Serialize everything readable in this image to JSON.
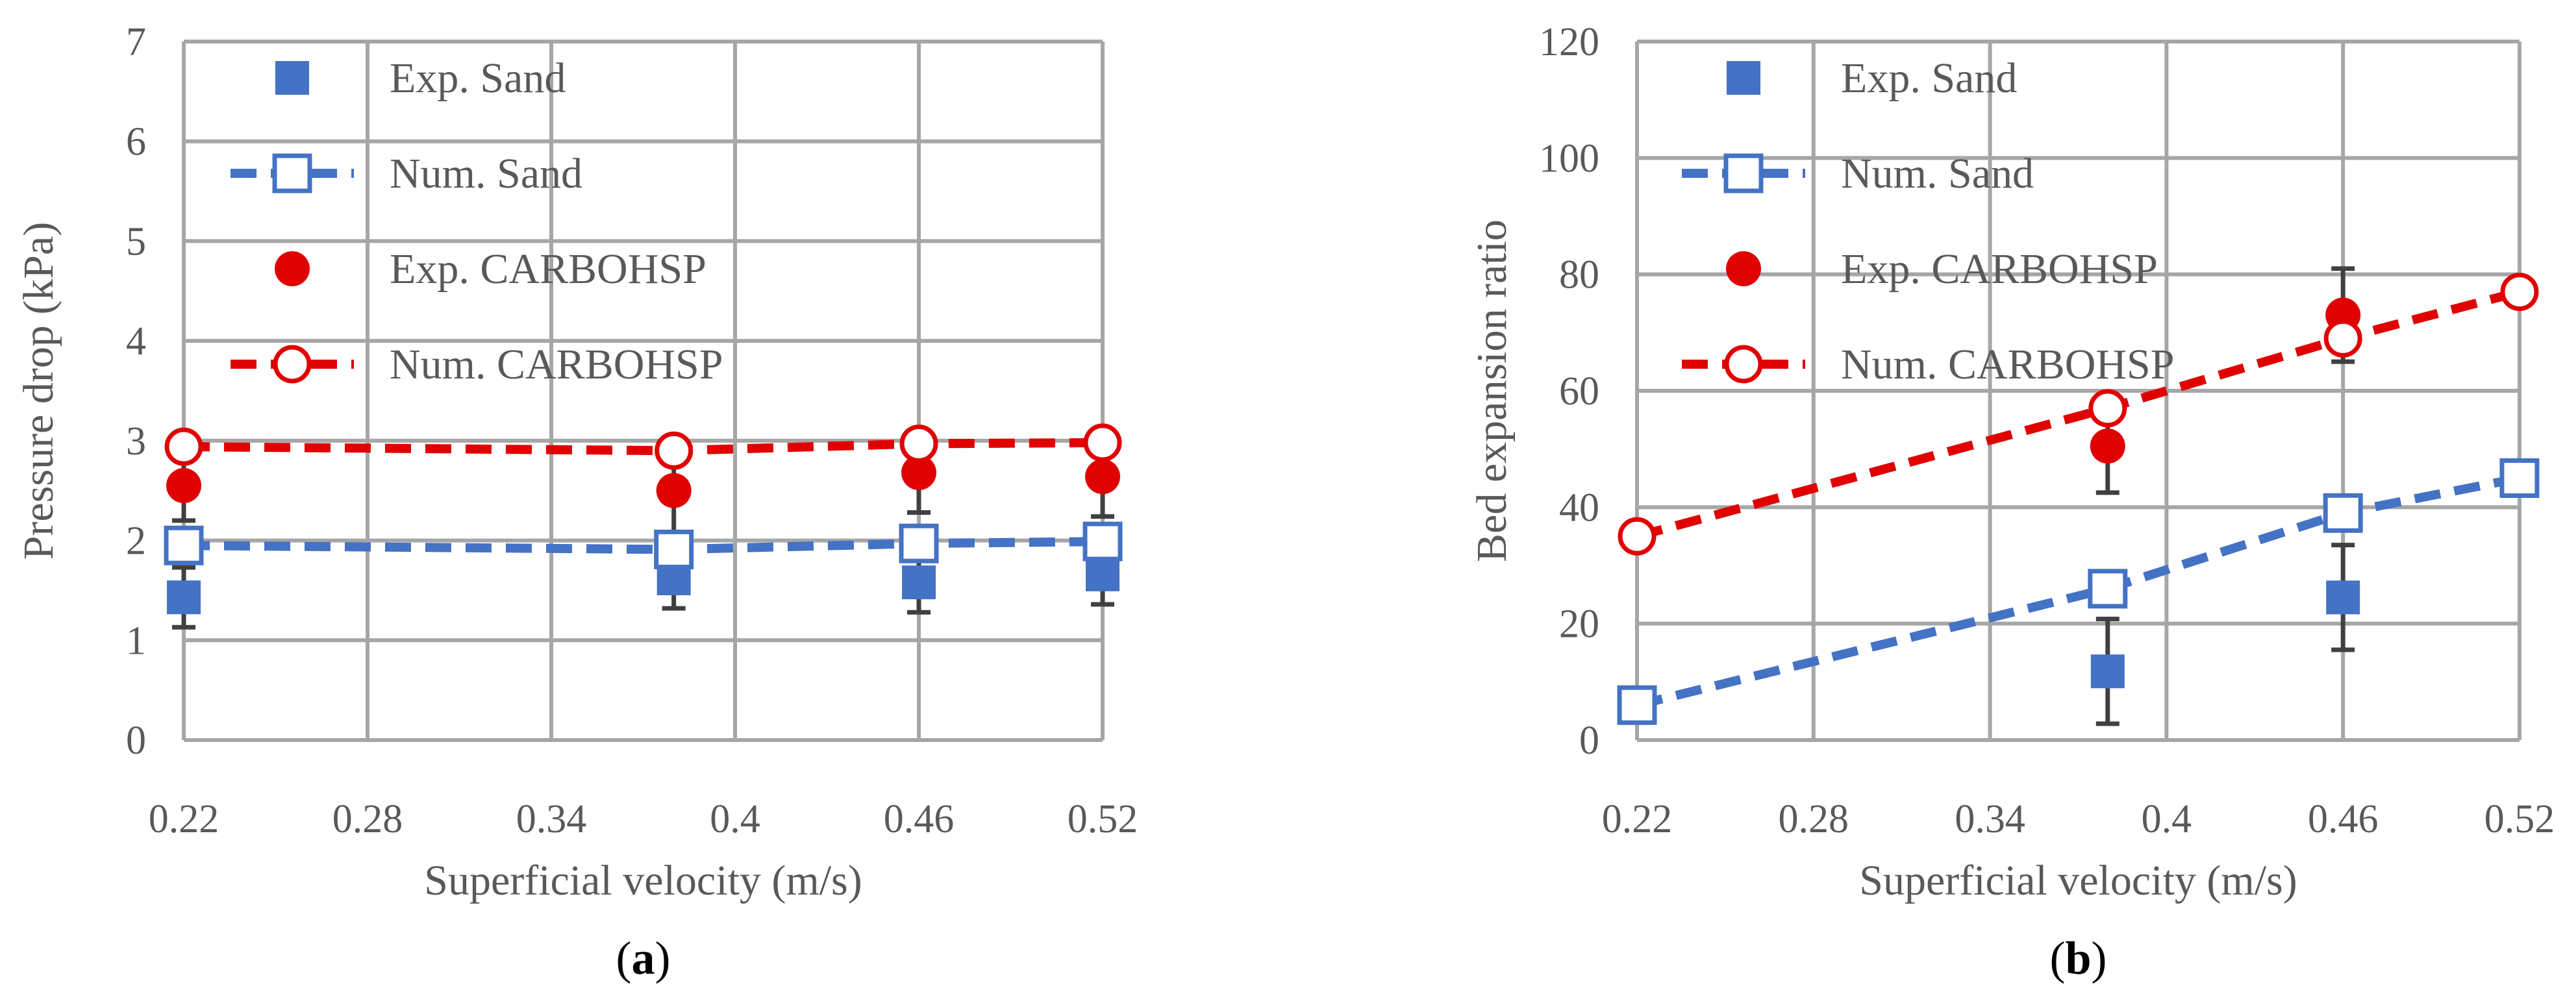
{
  "colors": {
    "sand": "#4472c4",
    "carbohsp": "#e00000",
    "grid": "#a6a6a6",
    "text": "#595959",
    "errbar": "#404040"
  },
  "chart_data": [
    {
      "type": "scatter",
      "panel_label_open": "(",
      "panel_label_letter": "a",
      "panel_label_close": ")",
      "xlabel": "Superficial velocity  (m/s)",
      "ylabel": "Pressure drop  (kPa)",
      "xlim": [
        0.22,
        0.52
      ],
      "ylim": [
        0,
        7
      ],
      "xticks": [
        0.22,
        0.28,
        0.34,
        0.4,
        0.46,
        0.52
      ],
      "xtick_labels": [
        "0.22",
        "0.28",
        "0.34",
        "0.4",
        "0.46",
        "0.52"
      ],
      "yticks": [
        0,
        1,
        2,
        3,
        4,
        5,
        6,
        7
      ],
      "ytick_labels": [
        "0",
        "1",
        "2",
        "3",
        "4",
        "5",
        "6",
        "7"
      ],
      "grid": true,
      "legend_position": "top-left",
      "series": [
        {
          "name": "Exp. Sand",
          "kind": "exp",
          "color": "sand",
          "marker": "filled-square",
          "x": [
            0.22,
            0.38,
            0.46,
            0.52
          ],
          "y": [
            1.43,
            1.62,
            1.58,
            1.66
          ],
          "err": [
            0.3,
            0.3,
            0.3,
            0.3
          ]
        },
        {
          "name": "Num. Sand",
          "kind": "num",
          "color": "sand",
          "marker": "open-square",
          "x": [
            0.22,
            0.38,
            0.46,
            0.52
          ],
          "y": [
            1.95,
            1.91,
            1.97,
            1.99
          ]
        },
        {
          "name": "Exp. CARBOHSP",
          "kind": "exp",
          "color": "carbohsp",
          "marker": "filled-circle",
          "x": [
            0.22,
            0.38,
            0.46,
            0.52
          ],
          "y": [
            2.55,
            2.5,
            2.68,
            2.64
          ],
          "err": [
            0.35,
            0.45,
            0.4,
            0.4
          ]
        },
        {
          "name": "Num. CARBOHSP",
          "kind": "num",
          "color": "carbohsp",
          "marker": "open-circle",
          "x": [
            0.22,
            0.38,
            0.46,
            0.52
          ],
          "y": [
            2.94,
            2.9,
            2.97,
            2.98
          ]
        }
      ]
    },
    {
      "type": "scatter",
      "panel_label_open": "(",
      "panel_label_letter": "b",
      "panel_label_close": ")",
      "xlabel": "Superficial velocity  (m/s)",
      "ylabel": "Bed expansion ratio",
      "xlim": [
        0.22,
        0.52
      ],
      "ylim": [
        0,
        120
      ],
      "xticks": [
        0.22,
        0.28,
        0.34,
        0.4,
        0.46,
        0.52
      ],
      "xtick_labels": [
        "0.22",
        "0.28",
        "0.34",
        "0.4",
        "0.46",
        "0.52"
      ],
      "yticks": [
        0,
        20,
        40,
        60,
        80,
        100,
        120
      ],
      "ytick_labels": [
        "0",
        "20",
        "40",
        "60",
        "80",
        "100",
        "120"
      ],
      "grid": true,
      "legend_position": "top-left",
      "series": [
        {
          "name": "Exp. Sand",
          "kind": "exp",
          "color": "sand",
          "marker": "filled-square",
          "x": [
            0.38,
            0.46
          ],
          "y": [
            11.8,
            24.5
          ],
          "err": [
            9.0,
            9.0
          ]
        },
        {
          "name": "Num. Sand",
          "kind": "num",
          "color": "sand",
          "marker": "open-square",
          "x": [
            0.22,
            0.38,
            0.46,
            0.52
          ],
          "y": [
            6,
            26,
            39,
            45
          ]
        },
        {
          "name": "Exp. CARBOHSP",
          "kind": "exp",
          "color": "carbohsp",
          "marker": "filled-circle",
          "x": [
            0.38,
            0.46
          ],
          "y": [
            50.5,
            73
          ],
          "err": [
            8.0,
            8.0
          ]
        },
        {
          "name": "Num. CARBOHSP",
          "kind": "num",
          "color": "carbohsp",
          "marker": "open-circle",
          "x": [
            0.22,
            0.38,
            0.46,
            0.52
          ],
          "y": [
            35,
            57,
            69,
            77
          ]
        }
      ]
    }
  ]
}
